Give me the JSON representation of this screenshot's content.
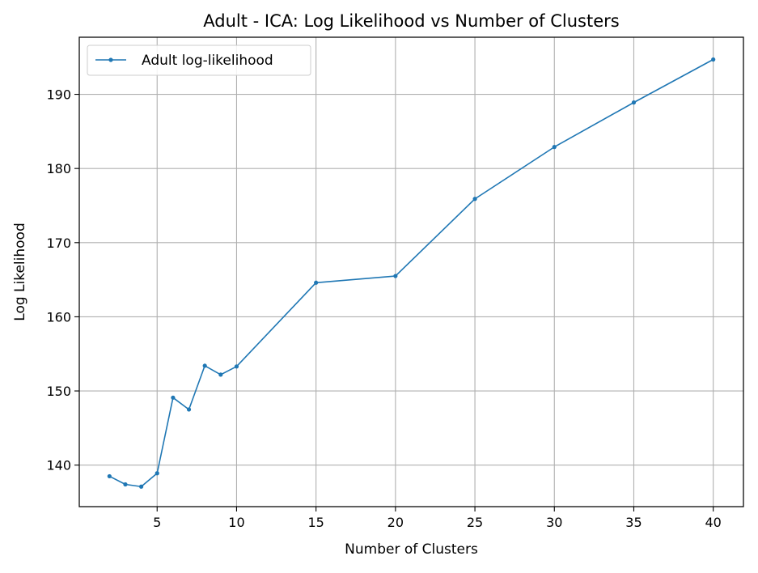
{
  "chart_data": {
    "type": "line",
    "title": "Adult - ICA: Log Likelihood vs Number of Clusters",
    "xlabel": "Number of Clusters",
    "ylabel": "Log Likelihood",
    "xlim": [
      0.1,
      41.9
    ],
    "ylim": [
      134.4,
      197.7
    ],
    "xticks": [
      5,
      10,
      15,
      20,
      25,
      30,
      35,
      40
    ],
    "yticks": [
      140,
      150,
      160,
      170,
      180,
      190
    ],
    "grid": true,
    "legend_position": "top-left",
    "series": [
      {
        "name": "Adult log-likelihood",
        "color": "#1f77b4",
        "marker": "circle",
        "x": [
          2,
          3,
          4,
          5,
          6,
          7,
          8,
          9,
          10,
          15,
          20,
          25,
          30,
          35,
          40
        ],
        "y": [
          138.5,
          137.4,
          137.1,
          138.9,
          149.1,
          147.5,
          153.4,
          152.2,
          153.3,
          164.6,
          165.5,
          175.9,
          182.9,
          188.9,
          194.7
        ]
      }
    ]
  }
}
